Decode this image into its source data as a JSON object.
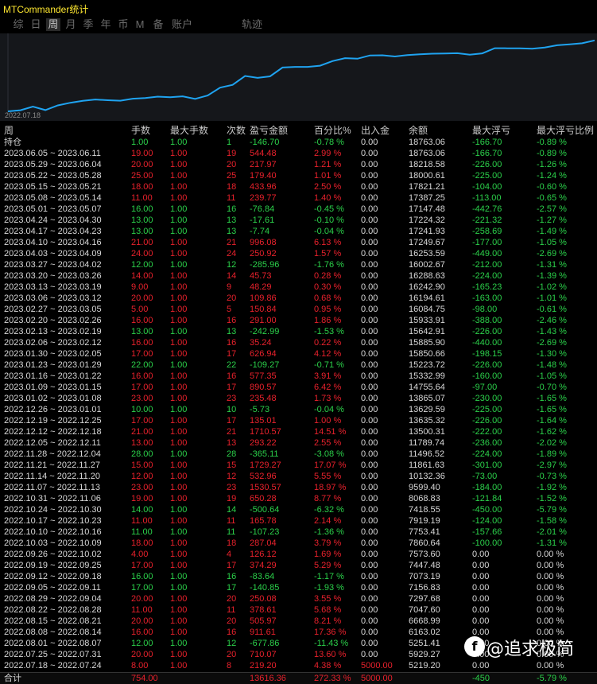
{
  "app": {
    "title": "MTCommander统计"
  },
  "tabs": [
    "综",
    "日",
    "周",
    "月",
    "季",
    "年",
    "币",
    "M",
    "备",
    "账户",
    "轨迹"
  ],
  "active_tab": "周",
  "chart": {
    "date_label": "2022.07.18"
  },
  "colors": {
    "profit": "#e8212c",
    "loss": "#2bd04a",
    "neutral": "#d8d8d8",
    "line": "#1fa3f0"
  },
  "headers": [
    "周",
    "手数",
    "最大手数",
    "次数",
    "盈亏金额",
    "百分比%",
    "出入金",
    "余额",
    "最大浮亏",
    "最大浮亏比例"
  ],
  "rows": [
    {
      "week": "持仓",
      "lots": "1.00",
      "max_lots": "1.00",
      "count": "1",
      "pnl": "-146.70",
      "pct": "-0.78 %",
      "io": "0.00",
      "balance": "18763.06",
      "max_dd": "-166.70",
      "dd_pct": "-0.89 %",
      "dir": "loss"
    },
    {
      "week": "2023.06.05 ~ 2023.06.11",
      "lots": "19.00",
      "max_lots": "1.00",
      "count": "19",
      "pnl": "544.48",
      "pct": "2.99 %",
      "io": "0.00",
      "balance": "18763.06",
      "max_dd": "-166.70",
      "dd_pct": "-0.89 %",
      "dir": "profit"
    },
    {
      "week": "2023.05.29 ~ 2023.06.04",
      "lots": "20.00",
      "max_lots": "1.00",
      "count": "20",
      "pnl": "217.97",
      "pct": "1.21 %",
      "io": "0.00",
      "balance": "18218.58",
      "max_dd": "-226.00",
      "dd_pct": "-1.26 %",
      "dir": "profit"
    },
    {
      "week": "2023.05.22 ~ 2023.05.28",
      "lots": "25.00",
      "max_lots": "1.00",
      "count": "25",
      "pnl": "179.40",
      "pct": "1.01 %",
      "io": "0.00",
      "balance": "18000.61",
      "max_dd": "-225.00",
      "dd_pct": "-1.24 %",
      "dir": "profit"
    },
    {
      "week": "2023.05.15 ~ 2023.05.21",
      "lots": "18.00",
      "max_lots": "1.00",
      "count": "18",
      "pnl": "433.96",
      "pct": "2.50 %",
      "io": "0.00",
      "balance": "17821.21",
      "max_dd": "-104.00",
      "dd_pct": "-0.60 %",
      "dir": "profit"
    },
    {
      "week": "2023.05.08 ~ 2023.05.14",
      "lots": "11.00",
      "max_lots": "1.00",
      "count": "11",
      "pnl": "239.77",
      "pct": "1.40 %",
      "io": "0.00",
      "balance": "17387.25",
      "max_dd": "-113.00",
      "dd_pct": "-0.65 %",
      "dir": "profit"
    },
    {
      "week": "2023.05.01 ~ 2023.05.07",
      "lots": "16.00",
      "max_lots": "1.00",
      "count": "16",
      "pnl": "-76.84",
      "pct": "-0.45 %",
      "io": "0.00",
      "balance": "17147.48",
      "max_dd": "-442.76",
      "dd_pct": "-2.57 %",
      "dir": "loss"
    },
    {
      "week": "2023.04.24 ~ 2023.04.30",
      "lots": "13.00",
      "max_lots": "1.00",
      "count": "13",
      "pnl": "-17.61",
      "pct": "-0.10 %",
      "io": "0.00",
      "balance": "17224.32",
      "max_dd": "-221.32",
      "dd_pct": "-1.27 %",
      "dir": "loss"
    },
    {
      "week": "2023.04.17 ~ 2023.04.23",
      "lots": "13.00",
      "max_lots": "1.00",
      "count": "13",
      "pnl": "-7.74",
      "pct": "-0.04 %",
      "io": "0.00",
      "balance": "17241.93",
      "max_dd": "-258.69",
      "dd_pct": "-1.49 %",
      "dir": "loss"
    },
    {
      "week": "2023.04.10 ~ 2023.04.16",
      "lots": "21.00",
      "max_lots": "1.00",
      "count": "21",
      "pnl": "996.08",
      "pct": "6.13 %",
      "io": "0.00",
      "balance": "17249.67",
      "max_dd": "-177.00",
      "dd_pct": "-1.05 %",
      "dir": "profit"
    },
    {
      "week": "2023.04.03 ~ 2023.04.09",
      "lots": "24.00",
      "max_lots": "1.00",
      "count": "24",
      "pnl": "250.92",
      "pct": "1.57 %",
      "io": "0.00",
      "balance": "16253.59",
      "max_dd": "-449.00",
      "dd_pct": "-2.69 %",
      "dir": "profit"
    },
    {
      "week": "2023.03.27 ~ 2023.04.02",
      "lots": "12.00",
      "max_lots": "1.00",
      "count": "12",
      "pnl": "-285.96",
      "pct": "-1.76 %",
      "io": "0.00",
      "balance": "16002.67",
      "max_dd": "-212.00",
      "dd_pct": "-1.31 %",
      "dir": "loss"
    },
    {
      "week": "2023.03.20 ~ 2023.03.26",
      "lots": "14.00",
      "max_lots": "1.00",
      "count": "14",
      "pnl": "45.73",
      "pct": "0.28 %",
      "io": "0.00",
      "balance": "16288.63",
      "max_dd": "-224.00",
      "dd_pct": "-1.39 %",
      "dir": "profit"
    },
    {
      "week": "2023.03.13 ~ 2023.03.19",
      "lots": "9.00",
      "max_lots": "1.00",
      "count": "9",
      "pnl": "48.29",
      "pct": "0.30 %",
      "io": "0.00",
      "balance": "16242.90",
      "max_dd": "-165.23",
      "dd_pct": "-1.02 %",
      "dir": "profit"
    },
    {
      "week": "2023.03.06 ~ 2023.03.12",
      "lots": "20.00",
      "max_lots": "1.00",
      "count": "20",
      "pnl": "109.86",
      "pct": "0.68 %",
      "io": "0.00",
      "balance": "16194.61",
      "max_dd": "-163.00",
      "dd_pct": "-1.01 %",
      "dir": "profit"
    },
    {
      "week": "2023.02.27 ~ 2023.03.05",
      "lots": "5.00",
      "max_lots": "1.00",
      "count": "5",
      "pnl": "150.84",
      "pct": "0.95 %",
      "io": "0.00",
      "balance": "16084.75",
      "max_dd": "-98.00",
      "dd_pct": "-0.61 %",
      "dir": "profit"
    },
    {
      "week": "2023.02.20 ~ 2023.02.26",
      "lots": "16.00",
      "max_lots": "1.00",
      "count": "16",
      "pnl": "291.00",
      "pct": "1.86 %",
      "io": "0.00",
      "balance": "15933.91",
      "max_dd": "-388.00",
      "dd_pct": "-2.46 %",
      "dir": "profit"
    },
    {
      "week": "2023.02.13 ~ 2023.02.19",
      "lots": "13.00",
      "max_lots": "1.00",
      "count": "13",
      "pnl": "-242.99",
      "pct": "-1.53 %",
      "io": "0.00",
      "balance": "15642.91",
      "max_dd": "-226.00",
      "dd_pct": "-1.43 %",
      "dir": "loss"
    },
    {
      "week": "2023.02.06 ~ 2023.02.12",
      "lots": "16.00",
      "max_lots": "1.00",
      "count": "16",
      "pnl": "35.24",
      "pct": "0.22 %",
      "io": "0.00",
      "balance": "15885.90",
      "max_dd": "-440.00",
      "dd_pct": "-2.69 %",
      "dir": "profit"
    },
    {
      "week": "2023.01.30 ~ 2023.02.05",
      "lots": "17.00",
      "max_lots": "1.00",
      "count": "17",
      "pnl": "626.94",
      "pct": "4.12 %",
      "io": "0.00",
      "balance": "15850.66",
      "max_dd": "-198.15",
      "dd_pct": "-1.30 %",
      "dir": "profit"
    },
    {
      "week": "2023.01.23 ~ 2023.01.29",
      "lots": "22.00",
      "max_lots": "1.00",
      "count": "22",
      "pnl": "-109.27",
      "pct": "-0.71 %",
      "io": "0.00",
      "balance": "15223.72",
      "max_dd": "-226.00",
      "dd_pct": "-1.48 %",
      "dir": "loss"
    },
    {
      "week": "2023.01.16 ~ 2023.01.22",
      "lots": "16.00",
      "max_lots": "1.00",
      "count": "16",
      "pnl": "577.35",
      "pct": "3.91 %",
      "io": "0.00",
      "balance": "15332.99",
      "max_dd": "-160.00",
      "dd_pct": "-1.05 %",
      "dir": "profit"
    },
    {
      "week": "2023.01.09 ~ 2023.01.15",
      "lots": "17.00",
      "max_lots": "1.00",
      "count": "17",
      "pnl": "890.57",
      "pct": "6.42 %",
      "io": "0.00",
      "balance": "14755.64",
      "max_dd": "-97.00",
      "dd_pct": "-0.70 %",
      "dir": "profit"
    },
    {
      "week": "2023.01.02 ~ 2023.01.08",
      "lots": "23.00",
      "max_lots": "1.00",
      "count": "23",
      "pnl": "235.48",
      "pct": "1.73 %",
      "io": "0.00",
      "balance": "13865.07",
      "max_dd": "-230.00",
      "dd_pct": "-1.65 %",
      "dir": "profit"
    },
    {
      "week": "2022.12.26 ~ 2023.01.01",
      "lots": "10.00",
      "max_lots": "1.00",
      "count": "10",
      "pnl": "-5.73",
      "pct": "-0.04 %",
      "io": "0.00",
      "balance": "13629.59",
      "max_dd": "-225.00",
      "dd_pct": "-1.65 %",
      "dir": "loss"
    },
    {
      "week": "2022.12.19 ~ 2022.12.25",
      "lots": "17.00",
      "max_lots": "1.00",
      "count": "17",
      "pnl": "135.01",
      "pct": "1.00 %",
      "io": "0.00",
      "balance": "13635.32",
      "max_dd": "-226.00",
      "dd_pct": "-1.64 %",
      "dir": "profit"
    },
    {
      "week": "2022.12.12 ~ 2022.12.18",
      "lots": "21.00",
      "max_lots": "1.00",
      "count": "21",
      "pnl": "1710.57",
      "pct": "14.51 %",
      "io": "0.00",
      "balance": "13500.31",
      "max_dd": "-222.00",
      "dd_pct": "-1.62 %",
      "dir": "profit"
    },
    {
      "week": "2022.12.05 ~ 2022.12.11",
      "lots": "13.00",
      "max_lots": "1.00",
      "count": "13",
      "pnl": "293.22",
      "pct": "2.55 %",
      "io": "0.00",
      "balance": "11789.74",
      "max_dd": "-236.00",
      "dd_pct": "-2.02 %",
      "dir": "profit"
    },
    {
      "week": "2022.11.28 ~ 2022.12.04",
      "lots": "28.00",
      "max_lots": "1.00",
      "count": "28",
      "pnl": "-365.11",
      "pct": "-3.08 %",
      "io": "0.00",
      "balance": "11496.52",
      "max_dd": "-224.00",
      "dd_pct": "-1.89 %",
      "dir": "loss"
    },
    {
      "week": "2022.11.21 ~ 2022.11.27",
      "lots": "15.00",
      "max_lots": "1.00",
      "count": "15",
      "pnl": "1729.27",
      "pct": "17.07 %",
      "io": "0.00",
      "balance": "11861.63",
      "max_dd": "-301.00",
      "dd_pct": "-2.97 %",
      "dir": "profit"
    },
    {
      "week": "2022.11.14 ~ 2022.11.20",
      "lots": "12.00",
      "max_lots": "1.00",
      "count": "12",
      "pnl": "532.96",
      "pct": "5.55 %",
      "io": "0.00",
      "balance": "10132.36",
      "max_dd": "-73.00",
      "dd_pct": "-0.73 %",
      "dir": "profit"
    },
    {
      "week": "2022.11.07 ~ 2022.11.13",
      "lots": "23.00",
      "max_lots": "1.00",
      "count": "23",
      "pnl": "1530.57",
      "pct": "18.97 %",
      "io": "0.00",
      "balance": "9599.40",
      "max_dd": "-184.00",
      "dd_pct": "-1.92 %",
      "dir": "profit"
    },
    {
      "week": "2022.10.31 ~ 2022.11.06",
      "lots": "19.00",
      "max_lots": "1.00",
      "count": "19",
      "pnl": "650.28",
      "pct": "8.77 %",
      "io": "0.00",
      "balance": "8068.83",
      "max_dd": "-121.84",
      "dd_pct": "-1.52 %",
      "dir": "profit"
    },
    {
      "week": "2022.10.24 ~ 2022.10.30",
      "lots": "14.00",
      "max_lots": "1.00",
      "count": "14",
      "pnl": "-500.64",
      "pct": "-6.32 %",
      "io": "0.00",
      "balance": "7418.55",
      "max_dd": "-450.00",
      "dd_pct": "-5.79 %",
      "dir": "loss"
    },
    {
      "week": "2022.10.17 ~ 2022.10.23",
      "lots": "11.00",
      "max_lots": "1.00",
      "count": "11",
      "pnl": "165.78",
      "pct": "2.14 %",
      "io": "0.00",
      "balance": "7919.19",
      "max_dd": "-124.00",
      "dd_pct": "-1.58 %",
      "dir": "profit"
    },
    {
      "week": "2022.10.10 ~ 2022.10.16",
      "lots": "11.00",
      "max_lots": "1.00",
      "count": "11",
      "pnl": "-107.23",
      "pct": "-1.36 %",
      "io": "0.00",
      "balance": "7753.41",
      "max_dd": "-157.66",
      "dd_pct": "-2.01 %",
      "dir": "loss"
    },
    {
      "week": "2022.10.03 ~ 2022.10.09",
      "lots": "18.00",
      "max_lots": "1.00",
      "count": "18",
      "pnl": "287.04",
      "pct": "3.79 %",
      "io": "0.00",
      "balance": "7860.64",
      "max_dd": "-100.00",
      "dd_pct": "-1.31 %",
      "dir": "profit"
    },
    {
      "week": "2022.09.26 ~ 2022.10.02",
      "lots": "4.00",
      "max_lots": "1.00",
      "count": "4",
      "pnl": "126.12",
      "pct": "1.69 %",
      "io": "0.00",
      "balance": "7573.60",
      "max_dd": "0.00",
      "dd_pct": "0.00 %",
      "dir": "profit"
    },
    {
      "week": "2022.09.19 ~ 2022.09.25",
      "lots": "17.00",
      "max_lots": "1.00",
      "count": "17",
      "pnl": "374.29",
      "pct": "5.29 %",
      "io": "0.00",
      "balance": "7447.48",
      "max_dd": "0.00",
      "dd_pct": "0.00 %",
      "dir": "profit"
    },
    {
      "week": "2022.09.12 ~ 2022.09.18",
      "lots": "16.00",
      "max_lots": "1.00",
      "count": "16",
      "pnl": "-83.64",
      "pct": "-1.17 %",
      "io": "0.00",
      "balance": "7073.19",
      "max_dd": "0.00",
      "dd_pct": "0.00 %",
      "dir": "loss"
    },
    {
      "week": "2022.09.05 ~ 2022.09.11",
      "lots": "17.00",
      "max_lots": "1.00",
      "count": "17",
      "pnl": "-140.85",
      "pct": "-1.93 %",
      "io": "0.00",
      "balance": "7156.83",
      "max_dd": "0.00",
      "dd_pct": "0.00 %",
      "dir": "loss"
    },
    {
      "week": "2022.08.29 ~ 2022.09.04",
      "lots": "20.00",
      "max_lots": "1.00",
      "count": "20",
      "pnl": "250.08",
      "pct": "3.55 %",
      "io": "0.00",
      "balance": "7297.68",
      "max_dd": "0.00",
      "dd_pct": "0.00 %",
      "dir": "profit"
    },
    {
      "week": "2022.08.22 ~ 2022.08.28",
      "lots": "11.00",
      "max_lots": "1.00",
      "count": "11",
      "pnl": "378.61",
      "pct": "5.68 %",
      "io": "0.00",
      "balance": "7047.60",
      "max_dd": "0.00",
      "dd_pct": "0.00 %",
      "dir": "profit"
    },
    {
      "week": "2022.08.15 ~ 2022.08.21",
      "lots": "20.00",
      "max_lots": "1.00",
      "count": "20",
      "pnl": "505.97",
      "pct": "8.21 %",
      "io": "0.00",
      "balance": "6668.99",
      "max_dd": "0.00",
      "dd_pct": "0.00 %",
      "dir": "profit"
    },
    {
      "week": "2022.08.08 ~ 2022.08.14",
      "lots": "16.00",
      "max_lots": "1.00",
      "count": "16",
      "pnl": "911.61",
      "pct": "17.36 %",
      "io": "0.00",
      "balance": "6163.02",
      "max_dd": "0.00",
      "dd_pct": "0.00 %",
      "dir": "profit"
    },
    {
      "week": "2022.08.01 ~ 2022.08.07",
      "lots": "12.00",
      "max_lots": "1.00",
      "count": "12",
      "pnl": "-677.86",
      "pct": "-11.43 %",
      "io": "0.00",
      "balance": "5251.41",
      "max_dd": "0.00",
      "dd_pct": "0.00 %",
      "dir": "loss"
    },
    {
      "week": "2022.07.25 ~ 2022.07.31",
      "lots": "20.00",
      "max_lots": "1.00",
      "count": "20",
      "pnl": "710.07",
      "pct": "13.60 %",
      "io": "0.00",
      "balance": "5929.27",
      "max_dd": "0.00",
      "dd_pct": "0.00 %",
      "dir": "profit"
    },
    {
      "week": "2022.07.18 ~ 2022.07.24",
      "lots": "8.00",
      "max_lots": "1.00",
      "count": "8",
      "pnl": "219.20",
      "pct": "4.38 %",
      "io": "5000.00",
      "balance": "5219.20",
      "max_dd": "0.00",
      "dd_pct": "0.00 %",
      "dir": "profit"
    }
  ],
  "footer": {
    "label": "合计",
    "lots": "754.00",
    "pnl": "13616.36",
    "pct": "272.33 %",
    "io": "5000.00",
    "max_dd": "-450",
    "dd_pct": "-5.79 %"
  },
  "watermark": {
    "logo": "f",
    "text": "@追求极简"
  }
}
